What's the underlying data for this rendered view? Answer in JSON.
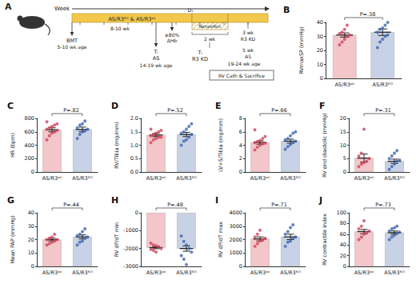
{
  "diagram": {
    "panel": "A",
    "week": "Week",
    "bar": "AS/R3ᴷᴼ & AS/R3ʷᵗ",
    "duration": "8-10 wk",
    "d1": "D₁",
    "tamoxifen": "Tamoxifen",
    "bmt": "BMT",
    "bmt_age": "5-10 wk age",
    "hb": [
      "≥80%",
      "ΔHb"
    ],
    "t_as": [
      "Tᵢ",
      "AS"
    ],
    "as_age": "14-19 wk age",
    "two_wk": "2 wk",
    "t_kd": [
      "Tᵢ",
      "R3 KD"
    ],
    "three_wk": [
      "3 wk",
      "R3 KD"
    ],
    "five_wk": [
      "5 wk",
      "AS"
    ],
    "end_age": "19-24 wk age",
    "end": "RV Cath & Sacrifice"
  },
  "chart_data": [
    {
      "panel": "B",
      "type": "bar",
      "ylabel": "RVmaxSP (mmHg)",
      "annotation": "P=.38",
      "categories": [
        "AS/R3ʷᵗ",
        "AS/R3ᴷᴼ"
      ],
      "values": [
        31,
        33
      ],
      "errors": [
        1.5,
        2.3
      ],
      "points": [
        [
          24,
          26,
          28,
          30,
          31,
          32,
          33,
          35,
          38
        ],
        [
          22,
          26,
          28,
          30,
          31,
          33,
          35,
          36,
          38,
          40
        ]
      ],
      "colors": [
        "#f3c6c9",
        "#c8d2e6"
      ],
      "ylim": [
        0,
        40
      ],
      "yticks": [
        0,
        10,
        20,
        30,
        40
      ]
    },
    {
      "panel": "C",
      "type": "bar",
      "ylabel": "HR (bpm)",
      "annotation": "P=.82",
      "categories": [
        "AS/R3ʷᵗ",
        "AS/R3ᴷᴼ"
      ],
      "values": [
        630,
        635
      ],
      "errors": [
        30,
        35
      ],
      "points": [
        [
          480,
          540,
          580,
          600,
          620,
          640,
          660,
          680,
          700,
          720,
          750
        ],
        [
          500,
          560,
          600,
          620,
          640,
          660,
          700,
          720,
          760
        ]
      ],
      "colors": [
        "#f3c6c9",
        "#c8d2e6"
      ],
      "ylim": [
        0,
        800
      ],
      "yticks": [
        0,
        200,
        400,
        600,
        800
      ]
    },
    {
      "panel": "D",
      "type": "bar",
      "ylabel": "RV/Tibia (mg/mm)",
      "annotation": "P=.52",
      "categories": [
        "AS/R3ʷᵗ",
        "AS/R3ᴷᴼ"
      ],
      "values": [
        1.38,
        1.4
      ],
      "errors": [
        0.06,
        0.08
      ],
      "points": [
        [
          1.1,
          1.2,
          1.25,
          1.3,
          1.3,
          1.35,
          1.4,
          1.45,
          1.5,
          1.55,
          1.6
        ],
        [
          1.0,
          1.15,
          1.2,
          1.3,
          1.4,
          1.45,
          1.5,
          1.6,
          1.7,
          1.8
        ]
      ],
      "colors": [
        "#f3c6c9",
        "#c8d2e6"
      ],
      "ylim": [
        0,
        2
      ],
      "yticks": [
        {
          "value": 0,
          "label": "0.0"
        },
        {
          "value": 0.5,
          "label": "0.5"
        },
        {
          "value": 1,
          "label": "1.0"
        },
        {
          "value": 1.5,
          "label": "1.5"
        },
        {
          "value": 2,
          "label": "2.0"
        }
      ]
    },
    {
      "panel": "E",
      "type": "bar",
      "ylabel": "LV+S/Tibia (mg/mm)",
      "annotation": "P=.66",
      "categories": [
        "AS/R3ʷᵗ",
        "AS/R3ᴷᴼ"
      ],
      "values": [
        4.4,
        4.6
      ],
      "errors": [
        0.25,
        0.3
      ],
      "points": [
        [
          3.3,
          3.7,
          4.0,
          4.2,
          4.3,
          4.4,
          4.5,
          4.7,
          5.0,
          5.3,
          6.3
        ],
        [
          3.4,
          3.8,
          4.1,
          4.4,
          4.6,
          4.8,
          5.0,
          5.4,
          5.8,
          6.0
        ]
      ],
      "colors": [
        "#f3c6c9",
        "#c8d2e6"
      ],
      "ylim": [
        0,
        8
      ],
      "yticks": [
        0,
        2,
        4,
        6,
        8
      ]
    },
    {
      "panel": "F",
      "type": "bar",
      "ylabel": "RV end diastolic (mmHg)",
      "annotation": "P=.31",
      "categories": [
        "AS/R3ʷᵗ",
        "AS/R3ᴷᴼ"
      ],
      "values": [
        5.2,
        4.0
      ],
      "errors": [
        1.5,
        0.8
      ],
      "points": [
        [
          2,
          3,
          3.5,
          4,
          5,
          6,
          7,
          16
        ],
        [
          1,
          2,
          3,
          4,
          4.5,
          5,
          6,
          7,
          8
        ]
      ],
      "colors": [
        "#f3c6c9",
        "#c8d2e6"
      ],
      "ylim": [
        0,
        20
      ],
      "yticks": [
        0,
        5,
        10,
        15,
        20
      ]
    },
    {
      "panel": "G",
      "type": "bar",
      "ylabel": "Mean PAP (mmHg)",
      "annotation": "P=.44",
      "categories": [
        "AS/R3ʷᵗ",
        "AS/R3ᴷᴼ"
      ],
      "values": [
        20,
        22
      ],
      "errors": [
        1,
        1.5
      ],
      "points": [
        [
          16,
          17,
          18,
          19,
          20,
          20,
          21,
          22,
          24
        ],
        [
          16,
          18,
          19,
          21,
          22,
          23,
          24,
          26,
          28
        ]
      ],
      "colors": [
        "#f3c6c9",
        "#c8d2e6"
      ],
      "ylim": [
        0,
        40
      ],
      "yticks": [
        0,
        10,
        20,
        30,
        40
      ]
    },
    {
      "panel": "H",
      "type": "bar",
      "ylabel": "RV dP/dT min",
      "annotation": "P=.48",
      "categories": [
        "AS/R3ʷᵗ",
        "AS/R3ᴷᴼ"
      ],
      "values": [
        -1950,
        -2000
      ],
      "errors": [
        60,
        150
      ],
      "points": [
        [
          -1700,
          -1800,
          -1850,
          -1900,
          -2000,
          -2050,
          -2100,
          -2200
        ],
        [
          -1300,
          -1600,
          -1800,
          -2000,
          -2200,
          -2400,
          -2600,
          -2900
        ]
      ],
      "colors": [
        "#f3c6c9",
        "#c8d2e6"
      ],
      "ylim": [
        -3000,
        0
      ],
      "yticks": [
        -3000,
        -2000,
        -1000,
        0
      ]
    },
    {
      "panel": "I",
      "type": "bar",
      "ylabel": "RV dP/dT max",
      "annotation": "P=.71",
      "categories": [
        "AS/R3ʷᵗ",
        "AS/R3ᴷᴼ"
      ],
      "values": [
        2050,
        2200
      ],
      "errors": [
        150,
        200
      ],
      "points": [
        [
          1500,
          1700,
          1900,
          2000,
          2100,
          2200,
          2400,
          2700
        ],
        [
          1500,
          1800,
          1900,
          2100,
          2200,
          2400,
          2600,
          2900,
          3100
        ]
      ],
      "colors": [
        "#f3c6c9",
        "#c8d2e6"
      ],
      "ylim": [
        0,
        4000
      ],
      "yticks": [
        0,
        1000,
        2000,
        3000,
        4000
      ]
    },
    {
      "panel": "J",
      "type": "bar",
      "ylabel": "RV contractile index",
      "annotation": "P=.73",
      "categories": [
        "AS/R3ʷᵗ",
        "AS/R3ᴷᴼ"
      ],
      "values": [
        65,
        63
      ],
      "errors": [
        4,
        3
      ],
      "points": [
        [
          50,
          55,
          60,
          63,
          66,
          70,
          75,
          85
        ],
        [
          50,
          55,
          58,
          62,
          64,
          66,
          70,
          72,
          75
        ]
      ],
      "colors": [
        "#f3c6c9",
        "#c8d2e6"
      ],
      "ylim": [
        0,
        100
      ],
      "yticks": [
        0,
        20,
        40,
        60,
        80,
        100
      ]
    }
  ]
}
